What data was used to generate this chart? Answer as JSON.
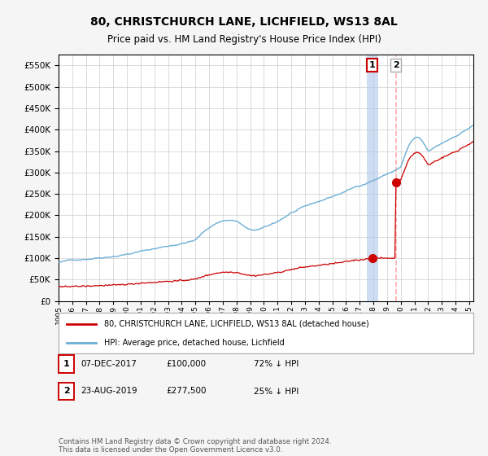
{
  "title": "80, CHRISTCHURCH LANE, LICHFIELD, WS13 8AL",
  "subtitle": "Price paid vs. HM Land Registry's House Price Index (HPI)",
  "hpi_label": "HPI: Average price, detached house, Lichfield",
  "price_label": "80, CHRISTCHURCH LANE, LICHFIELD, WS13 8AL (detached house)",
  "hpi_color": "#6baed6",
  "price_color": "#cc0000",
  "vline1_color": "#aec7e8",
  "vline2_color": "#ffb6b6",
  "sale1_date": 2017.92,
  "sale1_price": 100000,
  "sale2_date": 2019.64,
  "sale2_price": 277500,
  "ylim": [
    0,
    575000
  ],
  "xlim_start": 1995.0,
  "xlim_end": 2025.3,
  "yticks": [
    0,
    50000,
    100000,
    150000,
    200000,
    250000,
    300000,
    350000,
    400000,
    450000,
    500000,
    550000
  ],
  "xticks": [
    1995,
    1996,
    1997,
    1998,
    1999,
    2000,
    2001,
    2002,
    2003,
    2004,
    2005,
    2006,
    2007,
    2008,
    2009,
    2010,
    2011,
    2012,
    2013,
    2014,
    2015,
    2016,
    2017,
    2018,
    2019,
    2020,
    2021,
    2022,
    2023,
    2024,
    2025
  ],
  "footnote": "Contains HM Land Registry data © Crown copyright and database right 2024.\nThis data is licensed under the Open Government Licence v3.0.",
  "background_color": "#f5f5f5",
  "plot_bg_color": "#ffffff"
}
